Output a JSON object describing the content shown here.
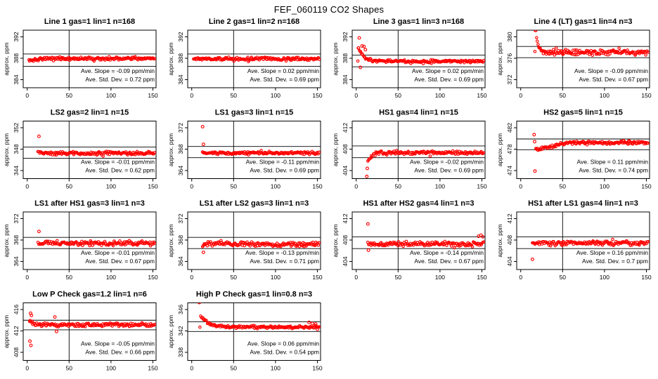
{
  "page_title": "FEF_060119  CO2 Shapes",
  "colors": {
    "marker": "#ff0000",
    "axis": "#000000",
    "background": "#ffffff"
  },
  "axis_common": {
    "x_ticks": [
      0,
      50,
      100,
      150
    ],
    "xlim": [
      -4.8,
      153.8
    ],
    "y_axis_label": "approx. ppm",
    "x_unit": "min",
    "grid": false
  },
  "chart_data": {
    "type": "scatter",
    "title": "FEF_060119  CO2 Shapes",
    "marker": "red-open-circle",
    "plots": [
      {
        "id": "line1",
        "title": "Line 1 gas=1 lin=1 n=168",
        "y_ticks": [
          384,
          388,
          392
        ],
        "ylim": [
          382.5,
          393.25
        ],
        "ref_lines": [
          388.8,
          386.5
        ],
        "vline_x": 50,
        "slope": -0.09,
        "std_dev": 0.72,
        "slope_label": "Ave. Slope = -0.09 ppm/min",
        "std_label": "Ave. Std. Dev. = 0.72 ppm",
        "series": {
          "x_start": 2,
          "x_end": 152,
          "n": 165,
          "baseline": 387.9,
          "noise": 0.32,
          "ramp": {
            "x0": 2,
            "x1": 20,
            "y0": 387.55,
            "y1": 387.95
          },
          "outliers": []
        }
      },
      {
        "id": "line2",
        "title": "Line 2 gas=1 lin=2 n=168",
        "y_ticks": [
          384,
          388,
          392
        ],
        "ylim": [
          382.5,
          393.25
        ],
        "ref_lines": [
          388.8,
          386.5
        ],
        "vline_x": 50,
        "slope": 0.02,
        "std_dev": 0.69,
        "slope_label": "Ave. Slope = 0.02 ppm/min",
        "std_label": "Ave. Std. Dev. = 0.69 ppm",
        "series": {
          "x_start": 2,
          "x_end": 152,
          "n": 165,
          "baseline": 387.9,
          "noise": 0.32,
          "outliers": []
        }
      },
      {
        "id": "line3",
        "title": "Line 3 gas=1 lin=3 n=168",
        "y_ticks": [
          384,
          388,
          392
        ],
        "ylim": [
          382.5,
          393.25
        ],
        "ref_lines": [
          388.6,
          386.4
        ],
        "vline_x": 50,
        "slope": 0.02,
        "std_dev": 0.69,
        "slope_label": "Ave. Slope = 0.02 ppm/min",
        "std_label": "Ave. Std. Dev. = 0.69 ppm",
        "series": {
          "x_start": 2,
          "x_end": 152,
          "n": 165,
          "baseline": 387.45,
          "noise": 0.3,
          "decay": {
            "x0": 2,
            "y0": 390.2,
            "tau": 6
          },
          "outliers": [
            [
              3.6,
              391.8
            ],
            [
              2.6,
              389.9
            ],
            [
              5,
              386.3
            ],
            [
              7,
              390.3
            ],
            [
              9.2,
              390.2
            ],
            [
              11,
              389.6
            ]
          ]
        }
      },
      {
        "id": "line4-lt",
        "title": "Line 4 (LT) gas=1 lin=4 n=3",
        "y_ticks": [
          372,
          376,
          380
        ],
        "ylim": [
          370.5,
          381.25
        ],
        "ref_lines": [
          378.2,
          376.1
        ],
        "vline_x": 50,
        "slope": -0.09,
        "std_dev": 0.67,
        "slope_label": "Ave. Slope = -0.09 ppm/min",
        "std_label": "Ave. Std. Dev. = 0.67 ppm",
        "series": {
          "x_start": 17,
          "x_end": 152,
          "n": 150,
          "baseline": 377.1,
          "noise": 0.55,
          "decay": {
            "x0": 17,
            "y0": 382.4,
            "tau": 2.8
          },
          "outliers": [
            [
              17.5,
              381.2
            ]
          ]
        }
      },
      {
        "id": "ls2",
        "title": "LS2 gas=2 lin=1 n=15",
        "y_ticks": [
          344,
          348,
          352
        ],
        "ylim": [
          342.5,
          353.25
        ],
        "ref_lines": [
          348.4,
          346.3
        ],
        "vline_x": 50,
        "slope": -0.01,
        "std_dev": 0.62,
        "slope_label": "Ave. Slope = -0.01 ppm/min",
        "std_label": "Ave. Std. Dev. = 0.62 ppm",
        "series": {
          "x_start": 13,
          "x_end": 152,
          "n": 148,
          "baseline": 347.25,
          "noise": 0.4,
          "outliers": [
            [
              14,
              350.4
            ]
          ]
        }
      },
      {
        "id": "ls1",
        "title": "LS1 gas=3 lin=1 n=15",
        "y_ticks": [
          364,
          368,
          372
        ],
        "ylim": [
          362.5,
          373.25
        ],
        "ref_lines": [
          368.5,
          366.4
        ],
        "vline_x": 50,
        "slope": -0.11,
        "std_dev": 0.69,
        "slope_label": "Ave. Slope = -0.11 ppm/min",
        "std_label": "Ave. Std. Dev. = 0.69 ppm",
        "series": {
          "x_start": 13,
          "x_end": 152,
          "n": 148,
          "baseline": 367.3,
          "noise": 0.35,
          "outliers": [
            [
              13,
              372.2
            ],
            [
              14,
              368.9
            ]
          ]
        }
      },
      {
        "id": "hs1",
        "title": "HS1 gas=4 lin=1 n=15",
        "y_ticks": [
          404,
          408,
          412
        ],
        "ylim": [
          402.5,
          413.25
        ],
        "ref_lines": [
          408.6,
          406.4
        ],
        "vline_x": 50,
        "slope": -0.02,
        "std_dev": 0.69,
        "slope_label": "Ave. Slope = -0.02 ppm/min",
        "std_label": "Ave. Std. Dev. = 0.69 ppm",
        "series": {
          "x_start": 14,
          "x_end": 152,
          "n": 148,
          "baseline": 407.35,
          "noise": 0.38,
          "ramp": {
            "x0": 14,
            "x1": 22,
            "y0": 405.8,
            "y1": 407.35
          },
          "outliers": [
            [
              12,
              402.0
            ],
            [
              12.6,
              402.9
            ],
            [
              13.2,
              404.4
            ]
          ]
        }
      },
      {
        "id": "hs2",
        "title": "HS2 gas=5 lin=1 n=15",
        "y_ticks": [
          474,
          478,
          482
        ],
        "ylim": [
          472.5,
          483.25
        ],
        "ref_lines": [
          479.9,
          477.9
        ],
        "vline_x": 50,
        "slope": 0.11,
        "std_dev": 0.74,
        "slope_label": "Ave. Slope = 0.11 ppm/min",
        "std_label": "Ave. Std. Dev. = 0.74 ppm",
        "series": {
          "x_start": 18,
          "x_end": 152,
          "n": 146,
          "baseline": 479.2,
          "noise": 0.35,
          "ramp": {
            "x0": 18,
            "x1": 55,
            "y0": 477.95,
            "y1": 479.2
          },
          "outliers": [
            [
              16,
              480.7
            ],
            [
              16.6,
              479.4
            ],
            [
              17,
              473.9
            ]
          ]
        }
      },
      {
        "id": "ls1-after-hs1",
        "title": "LS1 after HS1 gas=3 lin=1 n=3",
        "y_ticks": [
          364,
          368,
          372
        ],
        "ylim": [
          362.5,
          373.25
        ],
        "ref_lines": [
          368.5,
          366.4
        ],
        "vline_x": 50,
        "slope": -0.01,
        "std_dev": 0.67,
        "slope_label": "Ave. Slope = -0.01 ppm/min",
        "std_label": "Ave. Std. Dev. = 0.67 ppm",
        "series": {
          "x_start": 13,
          "x_end": 152,
          "n": 148,
          "baseline": 367.4,
          "noise": 0.5,
          "outliers": [
            [
              14,
              369.6
            ]
          ]
        }
      },
      {
        "id": "ls1-after-ls2",
        "title": "LS1 after LS2 gas=3 lin=1 n=3",
        "y_ticks": [
          364,
          368,
          372
        ],
        "ylim": [
          362.5,
          373.25
        ],
        "ref_lines": [
          368.5,
          366.4
        ],
        "vline_x": 50,
        "slope": -0.13,
        "std_dev": 0.71,
        "slope_label": "Ave. Slope = -0.13 ppm/min",
        "std_label": "Ave. Std. Dev. = 0.71 ppm",
        "series": {
          "x_start": 13,
          "x_end": 152,
          "n": 148,
          "baseline": 367.25,
          "noise": 0.5,
          "outliers": [
            [
              14,
              365.7
            ]
          ]
        }
      },
      {
        "id": "hs1-after-hs2",
        "title": "HS1 after HS2 gas=4 lin=1 n=3",
        "y_ticks": [
          404,
          408,
          412
        ],
        "ylim": [
          402.5,
          413.25
        ],
        "ref_lines": [
          408.6,
          406.4
        ],
        "vline_x": 50,
        "slope": -0.14,
        "std_dev": 0.67,
        "slope_label": "Ave. Slope = -0.14 ppm/min",
        "std_label": "Ave. Std. Dev. = 0.67 ppm",
        "series": {
          "x_start": 14,
          "x_end": 152,
          "n": 148,
          "baseline": 407.3,
          "noise": 0.5,
          "outliers": [
            [
              14,
              411.0
            ],
            [
              14.6,
              406.1
            ],
            [
              146,
              408.7
            ],
            [
              149,
              408.9
            ],
            [
              151,
              408.6
            ]
          ]
        }
      },
      {
        "id": "hs1-after-ls1",
        "title": "HS1 after LS1 gas=4 lin=1 n=3",
        "y_ticks": [
          404,
          408,
          412
        ],
        "ylim": [
          402.5,
          413.25
        ],
        "ref_lines": [
          408.6,
          406.4
        ],
        "vline_x": 50,
        "slope": 0.16,
        "std_dev": 0.7,
        "slope_label": "Ave. Slope = 0.16 ppm/min",
        "std_label": "Ave. Std. Dev. = 0.7 ppm",
        "series": {
          "x_start": 14,
          "x_end": 152,
          "n": 148,
          "baseline": 407.4,
          "noise": 0.5,
          "outliers": [
            [
              14,
              404.4
            ]
          ]
        }
      },
      {
        "id": "low-p-check",
        "title": "Low P Check gas=1.2 lin=1 n=6",
        "y_ticks": [
          408,
          412,
          416
        ],
        "ylim": [
          406.5,
          417.25
        ],
        "ref_lines": [
          414.0,
          412.2
        ],
        "vline_x": 50,
        "slope": -0.05,
        "std_dev": 0.66,
        "slope_label": "Ave. Slope = -0.05 ppm/min",
        "std_label": "Ave. Std. Dev. = 0.66 ppm",
        "series": {
          "x_start": 3,
          "x_end": 152,
          "n": 158,
          "baseline": 413.15,
          "noise": 0.42,
          "ramp": {
            "x0": 3,
            "x1": 12,
            "y0": 413.7,
            "y1": 413.15
          },
          "outliers": [
            [
              4,
              415.3
            ],
            [
              5,
              414.9
            ],
            [
              3.4,
              413.9
            ],
            [
              3.2,
              410.1
            ],
            [
              4.4,
              409.3
            ],
            [
              33,
              414.6
            ],
            [
              35,
              411.9
            ]
          ]
        }
      },
      {
        "id": "high-p-check",
        "title": "High P Check gas=1 lin=0.8 n=3",
        "y_ticks": [
          338,
          342,
          346
        ],
        "ylim": [
          336.5,
          347.25
        ],
        "ref_lines": [
          343.7,
          341.9
        ],
        "vline_x": 50,
        "slope": 0.06,
        "std_dev": 0.54,
        "slope_label": "Ave. Slope = 0.06 ppm/min",
        "std_label": "Ave. Std. Dev. = 0.54 ppm",
        "series": {
          "x_start": 10,
          "x_end": 152,
          "n": 150,
          "baseline": 342.72,
          "noise": 0.32,
          "decay": {
            "x0": 10,
            "y0": 345.1,
            "tau": 9
          },
          "outliers": [
            [
              2,
              348.0
            ],
            [
              3,
              347.7
            ],
            [
              9,
              347.3
            ],
            [
              140,
              343.6
            ],
            [
              144,
              343.4
            ],
            [
              148,
              343.3
            ],
            [
              150,
              342.3
            ]
          ]
        }
      }
    ]
  }
}
